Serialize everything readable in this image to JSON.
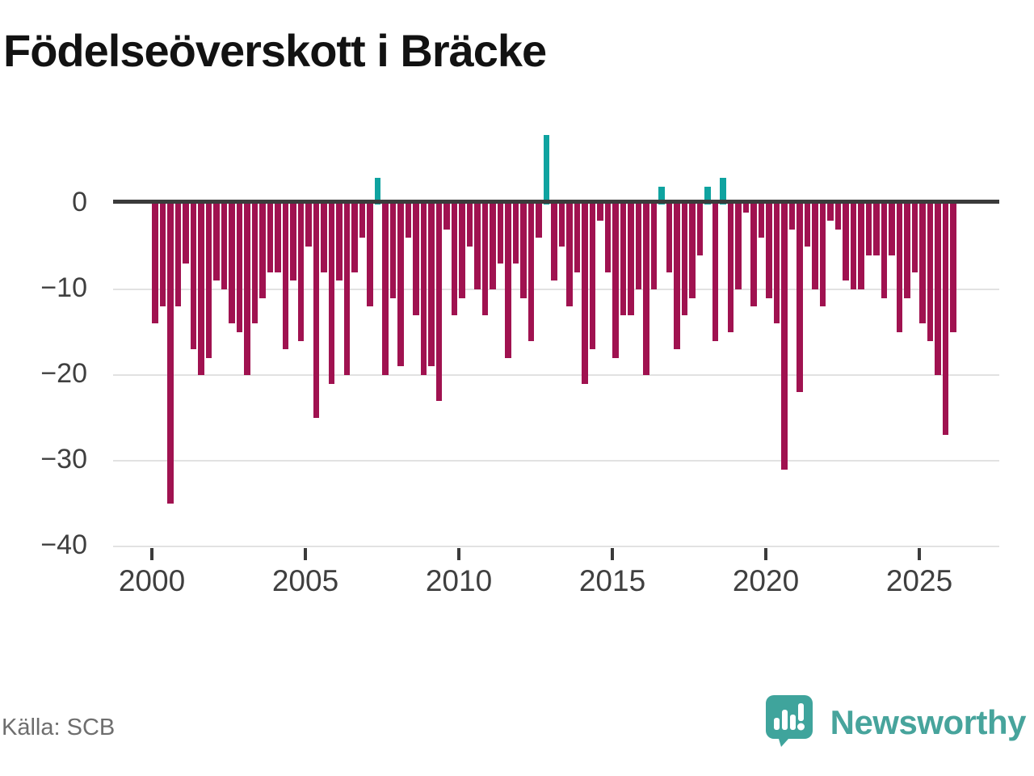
{
  "title": "Födelseöverskott i Bräcke",
  "source": "Källa: SCB",
  "brand": {
    "name": "Newsworthy",
    "icon": "speech-bubble-bar-chart-icon"
  },
  "colors": {
    "negative_bar": "#a01250",
    "positive_bar": "#0fa3a0",
    "zero_line": "#3b3b3b",
    "gridline": "#e2e2e2",
    "axis_text": "#3f3f3f",
    "title_text": "#121212",
    "source_text": "#6e6e6e",
    "brand_teal": "#47a49c"
  },
  "chart_data": {
    "type": "bar",
    "title": "Födelseöverskott i Bräcke",
    "frequency": "quarterly",
    "start_year": 2000,
    "start_quarter": 1,
    "end_label": "2026 Q1",
    "xlabel": "",
    "ylabel": "",
    "ylim": [
      -40,
      9
    ],
    "grid": "horizontal",
    "x_tick_years": [
      2000,
      2005,
      2010,
      2015,
      2020,
      2025
    ],
    "y_tick_values": [
      0,
      -10,
      -20,
      -30,
      -40
    ],
    "y_tick_labels": [
      "0",
      "−10",
      "−20",
      "−30",
      "−40"
    ],
    "values": [
      -14,
      -12,
      -35,
      -12,
      -7,
      -17,
      -20,
      -18,
      -9,
      -10,
      -14,
      -15,
      -20,
      -14,
      -11,
      -8,
      -8,
      -17,
      -9,
      -16,
      -5,
      -25,
      -8,
      -21,
      -9,
      -20,
      -8,
      -4,
      -12,
      3,
      -20,
      -11,
      -19,
      -4,
      -13,
      -20,
      -19,
      -23,
      -3,
      -13,
      -11,
      -5,
      -10,
      -13,
      -10,
      -7,
      -18,
      -7,
      -11,
      -16,
      -4,
      8,
      -9,
      -5,
      -12,
      -8,
      -21,
      -17,
      -2,
      -8,
      -18,
      -13,
      -13,
      -10,
      -20,
      -10,
      2,
      -8,
      -17,
      -13,
      -11,
      -6,
      2,
      -16,
      3,
      -15,
      -10,
      -1,
      -12,
      -4,
      -11,
      -14,
      -31,
      -3,
      -22,
      -5,
      -10,
      -12,
      -2,
      -3,
      -9,
      -10,
      -10,
      -6,
      -6,
      -11,
      -6,
      -15,
      -11,
      -8,
      -14,
      -16,
      -20,
      -27,
      -15
    ]
  }
}
